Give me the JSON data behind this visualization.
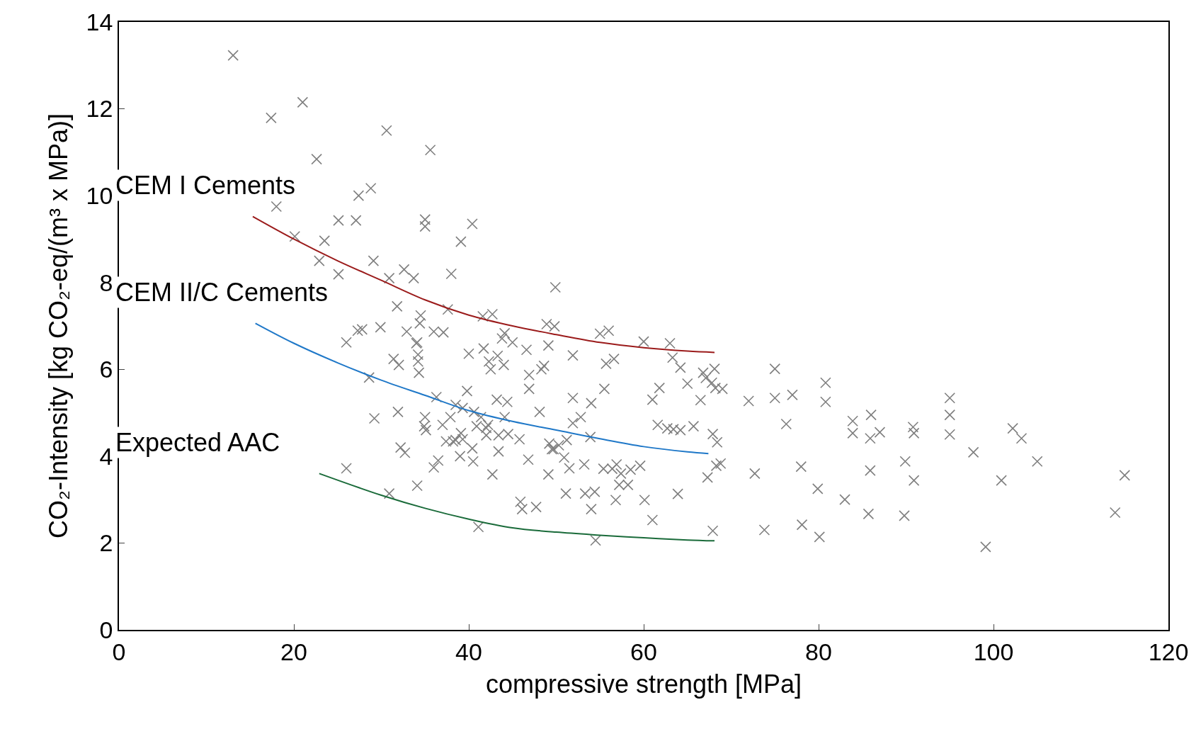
{
  "chart_data": {
    "type": "scatter",
    "xlabel": "compressive strength [MPa]",
    "ylabel": "CO₂-Intensity [kg CO₂-eq/(m³ x MPa)]",
    "xlim": [
      0,
      120
    ],
    "ylim": [
      0,
      14
    ],
    "xticks": [
      0,
      20,
      40,
      60,
      80,
      100,
      120
    ],
    "yticks": [
      0,
      2,
      4,
      6,
      8,
      10,
      12,
      14
    ],
    "grid": false,
    "marker": "cross",
    "series": [
      {
        "color": "#7f7f7f",
        "x": [
          13.05,
          17.4,
          21.0,
          22.6,
          18.0,
          20.1,
          23.5,
          22.9,
          25.1,
          25.1,
          27.1,
          27.4,
          28.8,
          29.1,
          30.6,
          30.9,
          31.8,
          32.6,
          33.7,
          35.0,
          35.0,
          35.6,
          40.4,
          39.1,
          38.0,
          37.6,
          26.0,
          27.3,
          27.8,
          29.9,
          28.6,
          29.2,
          26.0,
          30.9,
          31.4,
          32.0,
          31.9,
          32.2,
          32.7,
          32.9,
          34.0,
          34.2,
          34.2,
          34.3,
          34.1,
          34.4,
          34.5,
          34.1,
          35.0,
          34.9,
          35.1,
          36.0,
          36.3,
          37.1,
          36.0,
          36.5,
          37.0,
          37.4,
          37.9,
          38.2,
          38.5,
          38.5,
          39.0,
          39.1,
          39.3,
          39.3,
          39.8,
          40.0,
          40.4,
          40.5,
          40.6,
          40.9,
          41.1,
          41.4,
          41.6,
          41.7,
          42.0,
          42.0,
          42.2,
          42.3,
          42.5,
          42.7,
          42.7,
          43.3,
          43.4,
          43.4,
          43.2,
          43.8,
          44.0,
          44.1,
          44.1,
          44.4,
          44.5,
          45.0,
          45.8,
          45.9,
          46.1,
          46.6,
          46.8,
          46.9,
          46.9,
          47.7,
          48.1,
          48.3,
          48.6,
          48.9,
          49.1,
          49.2,
          49.1,
          49.5,
          49.7,
          49.8,
          49.9,
          50.3,
          50.9,
          51.1,
          51.2,
          51.5,
          51.9,
          51.9,
          51.9,
          52.8,
          53.2,
          53.3,
          53.9,
          54.0,
          54.0,
          54.4,
          54.5,
          55.0,
          55.4,
          55.5,
          55.7,
          56.0,
          56.4,
          56.6,
          56.8,
          56.9,
          57.2,
          57.4,
          58.2,
          58.5,
          59.6,
          60.0,
          60.1,
          61.0,
          61.0,
          61.6,
          61.8,
          62.7,
          63.0,
          63.3,
          63.4,
          63.9,
          64.2,
          64.2,
          65.0,
          65.7,
          66.5,
          66.8,
          67.1,
          67.3,
          67.8,
          67.9,
          67.9,
          68.1,
          68.2,
          68.3,
          68.4,
          68.8,
          69.0,
          72.0,
          72.7,
          73.8,
          75.0,
          75.0,
          76.3,
          77.0,
          78.0,
          78.1,
          79.9,
          80.1,
          80.8,
          80.8,
          83.0,
          83.9,
          83.9,
          85.7,
          85.9,
          85.9,
          86.0,
          87.0,
          89.8,
          89.9,
          90.8,
          90.9,
          90.9,
          95.0,
          95.0,
          95.0,
          97.7,
          99.1,
          100.9,
          102.2,
          103.2,
          105.0,
          113.9,
          115.0
        ],
        "values": [
          13.23,
          11.79,
          12.15,
          10.84,
          9.75,
          9.06,
          8.96,
          8.5,
          9.43,
          8.19,
          9.43,
          10.0,
          10.17,
          8.5,
          11.5,
          8.1,
          7.45,
          8.3,
          8.1,
          9.45,
          9.29,
          11.05,
          9.35,
          8.94,
          8.2,
          7.38,
          6.62,
          6.89,
          6.92,
          6.97,
          5.81,
          4.87,
          3.72,
          3.14,
          6.24,
          6.1,
          5.02,
          4.2,
          4.08,
          6.87,
          6.6,
          6.34,
          6.18,
          5.92,
          6.62,
          7.06,
          7.24,
          3.32,
          4.9,
          4.69,
          4.6,
          6.87,
          5.36,
          6.85,
          3.74,
          3.9,
          4.72,
          4.34,
          4.9,
          4.34,
          5.18,
          4.37,
          4.0,
          4.53,
          4.39,
          5.11,
          5.5,
          6.36,
          4.18,
          3.88,
          5.02,
          4.69,
          2.37,
          4.9,
          7.22,
          6.48,
          4.48,
          4.65,
          4.72,
          6.18,
          6.0,
          7.27,
          3.58,
          6.31,
          4.11,
          4.48,
          5.3,
          6.71,
          6.1,
          6.83,
          4.9,
          5.25,
          4.51,
          6.62,
          4.39,
          2.95,
          2.78,
          6.45,
          3.92,
          5.55,
          5.87,
          2.83,
          5.02,
          6.0,
          6.08,
          7.04,
          6.55,
          4.29,
          3.58,
          4.16,
          4.16,
          6.99,
          7.89,
          4.25,
          3.97,
          3.14,
          4.37,
          3.72,
          6.32,
          5.34,
          4.76,
          4.9,
          3.81,
          3.14,
          4.44,
          2.78,
          5.22,
          3.18,
          2.06,
          6.82,
          3.71,
          5.55,
          6.13,
          6.89,
          3.71,
          6.24,
          2.99,
          3.81,
          3.34,
          3.6,
          3.34,
          3.69,
          3.78,
          6.64,
          2.99,
          2.53,
          5.3,
          4.72,
          5.57,
          4.64,
          6.6,
          6.27,
          4.62,
          3.13,
          4.6,
          6.04,
          5.67,
          4.69,
          5.29,
          5.92,
          5.8,
          3.51,
          5.69,
          4.51,
          2.28,
          6.01,
          5.57,
          3.78,
          4.32,
          3.83,
          5.55,
          5.27,
          3.6,
          2.3,
          6.01,
          5.34,
          4.74,
          5.41,
          3.76,
          2.42,
          3.25,
          2.14,
          5.69,
          5.25,
          3.0,
          4.81,
          4.53,
          2.67,
          3.67,
          4.41,
          4.95,
          4.55,
          2.63,
          3.88,
          4.67,
          3.44,
          4.53,
          5.34,
          4.95,
          4.5,
          4.09,
          1.91,
          3.44,
          4.64,
          4.41,
          3.88,
          2.7,
          3.56
        ]
      },
      {
        "type": "line",
        "marker": "none",
        "color": "#9b1b1b",
        "x": [
          15.3,
          20,
          25,
          30,
          35,
          40,
          45,
          50,
          55,
          60,
          65,
          68.1
        ],
        "values": [
          9.52,
          9.0,
          8.5,
          8.05,
          7.6,
          7.25,
          7.0,
          6.8,
          6.62,
          6.5,
          6.42,
          6.39
        ]
      },
      {
        "type": "line",
        "marker": "none",
        "color": "#1f78c8",
        "x": [
          15.6,
          20,
          25,
          30,
          35,
          40,
          45,
          50,
          55,
          60,
          65,
          67.4
        ],
        "values": [
          7.06,
          6.6,
          6.15,
          5.75,
          5.4,
          5.05,
          4.8,
          4.6,
          4.4,
          4.22,
          4.1,
          4.06
        ]
      },
      {
        "type": "line",
        "marker": "none",
        "color": "#1a6b3a",
        "x": [
          22.9,
          30,
          35,
          40,
          45,
          50,
          55,
          60,
          65,
          68.1
        ],
        "values": [
          3.6,
          3.1,
          2.8,
          2.55,
          2.35,
          2.25,
          2.18,
          2.12,
          2.07,
          2.05
        ]
      }
    ],
    "annotations": [
      "CEM I Cements",
      "CEM II/C Cements",
      "Expected AAC"
    ]
  }
}
